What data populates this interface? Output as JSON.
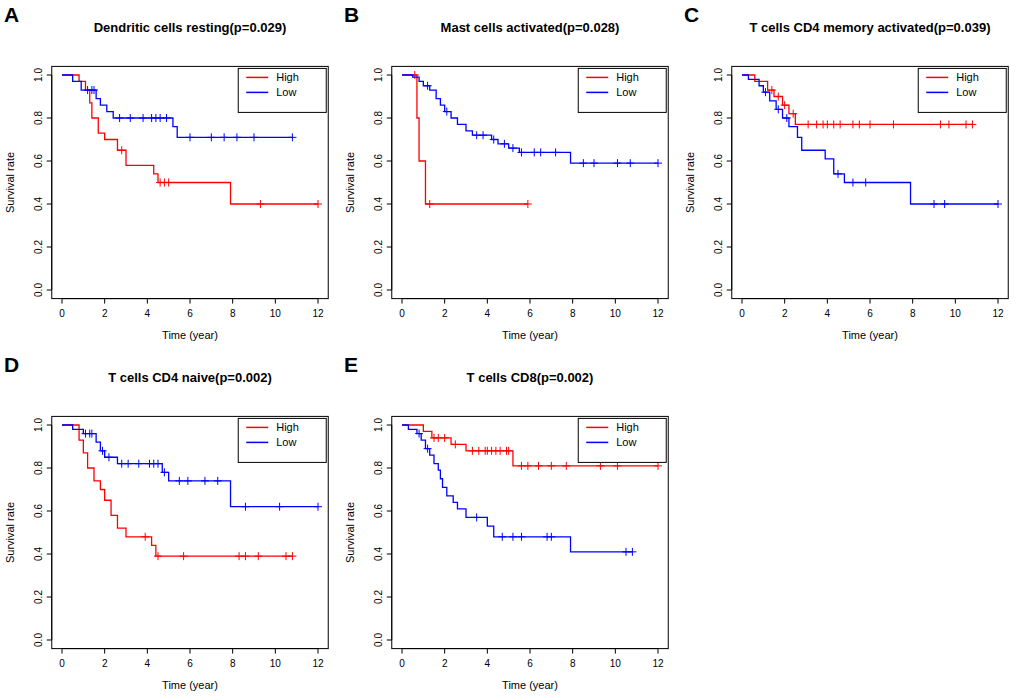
{
  "chart_data": [
    {
      "type": "step",
      "panel_label": "A",
      "title": "Dendritic cells resting(p=0.029)",
      "x_label": "Time (year)",
      "y_label": "Survival rate",
      "xlim": [
        0,
        12
      ],
      "ylim": [
        0,
        1
      ],
      "xticks": [
        0,
        2,
        4,
        6,
        8,
        10,
        12
      ],
      "yticks": [
        {
          "value": 0,
          "label": "0.0"
        },
        0.2,
        0.4,
        0.6,
        0.8,
        {
          "value": 1,
          "label": "1.0"
        }
      ],
      "legend": "topright",
      "marker": "plus",
      "series": [
        {
          "name": "High",
          "color": "#ff0000",
          "x": [
            0,
            0.8,
            1.1,
            1.3,
            1.4,
            1.7,
            2.0,
            2.6,
            3.0,
            4.3,
            4.5,
            7.9,
            12
          ],
          "values": [
            1,
            0.97,
            0.93,
            0.87,
            0.8,
            0.73,
            0.7,
            0.65,
            0.58,
            0.54,
            0.5,
            0.4,
            0.4
          ],
          "censor_x": [
            2.8,
            4.6,
            4.8,
            5.0,
            9.3,
            12
          ],
          "censor_values": [
            0.65,
            0.5,
            0.5,
            0.5,
            0.4,
            0.4
          ]
        },
        {
          "name": "Low",
          "color": "#0000ff",
          "x": [
            0,
            0.5,
            0.9,
            1.6,
            1.8,
            2.1,
            2.4,
            5.2,
            5.4,
            10.8
          ],
          "values": [
            1,
            0.97,
            0.93,
            0.89,
            0.86,
            0.83,
            0.8,
            0.76,
            0.71,
            0.71
          ],
          "censor_x": [
            1.2,
            1.4,
            1.5,
            2.7,
            3.2,
            3.8,
            4.2,
            4.4,
            4.6,
            4.9,
            6.0,
            7.0,
            7.6,
            8.2,
            9.0,
            10.8
          ],
          "censor_values": [
            0.93,
            0.93,
            0.93,
            0.8,
            0.8,
            0.8,
            0.8,
            0.8,
            0.8,
            0.8,
            0.71,
            0.71,
            0.71,
            0.71,
            0.71,
            0.71
          ]
        }
      ]
    },
    {
      "type": "step",
      "panel_label": "B",
      "title": "Mast cells activated(p=0.028)",
      "x_label": "Time (year)",
      "y_label": "Survival rate",
      "xlim": [
        0,
        12
      ],
      "ylim": [
        0,
        1
      ],
      "xticks": [
        0,
        2,
        4,
        6,
        8,
        10,
        12
      ],
      "yticks": [
        {
          "value": 0,
          "label": "0.0"
        },
        0.2,
        0.4,
        0.6,
        0.8,
        {
          "value": 1,
          "label": "1.0"
        }
      ],
      "legend": "topright",
      "marker": "plus",
      "series": [
        {
          "name": "High",
          "color": "#ff0000",
          "x": [
            0,
            0.7,
            0.8,
            1.1,
            5.9
          ],
          "values": [
            1,
            0.8,
            0.6,
            0.4,
            0.4
          ],
          "censor_x": [
            0.6,
            1.3,
            5.9
          ],
          "censor_values": [
            1,
            0.4,
            0.4
          ]
        },
        {
          "name": "Low",
          "color": "#0000ff",
          "x": [
            0,
            0.5,
            0.8,
            1.0,
            1.3,
            1.6,
            1.8,
            2.0,
            2.3,
            2.6,
            3.0,
            3.3,
            4.2,
            4.5,
            5.0,
            5.5,
            7.9,
            12
          ],
          "values": [
            1,
            0.99,
            0.97,
            0.95,
            0.93,
            0.89,
            0.86,
            0.83,
            0.8,
            0.77,
            0.74,
            0.72,
            0.7,
            0.68,
            0.66,
            0.64,
            0.59,
            0.59
          ],
          "censor_x": [
            1.2,
            2.1,
            3.5,
            3.8,
            4.3,
            4.8,
            5.2,
            5.6,
            6.2,
            6.5,
            7.2,
            8.5,
            9.0,
            10.1,
            10.7,
            12
          ],
          "censor_values": [
            0.95,
            0.83,
            0.72,
            0.72,
            0.7,
            0.68,
            0.66,
            0.64,
            0.64,
            0.64,
            0.64,
            0.59,
            0.59,
            0.59,
            0.59,
            0.59
          ]
        }
      ]
    },
    {
      "type": "step",
      "panel_label": "C",
      "title": "T cells CD4 memory activated(p=0.039)",
      "x_label": "Time (year)",
      "y_label": "Survival rate",
      "xlim": [
        0,
        12
      ],
      "ylim": [
        0,
        1
      ],
      "xticks": [
        0,
        2,
        4,
        6,
        8,
        10,
        12
      ],
      "yticks": [
        {
          "value": 0,
          "label": "0.0"
        },
        0.2,
        0.4,
        0.6,
        0.8,
        {
          "value": 1,
          "label": "1.0"
        }
      ],
      "legend": "topright",
      "marker": "plus",
      "series": [
        {
          "name": "High",
          "color": "#ff0000",
          "x": [
            0,
            0.6,
            1.2,
            1.5,
            1.9,
            2.2,
            2.5,
            10.8
          ],
          "values": [
            1,
            0.97,
            0.93,
            0.9,
            0.86,
            0.82,
            0.77,
            0.77
          ],
          "censor_x": [
            1.4,
            1.7,
            2.0,
            2.4,
            3.1,
            3.5,
            3.8,
            4.0,
            4.3,
            4.6,
            5.2,
            5.5,
            6.0,
            7.1,
            9.3,
            9.7,
            10.5,
            10.8
          ],
          "censor_values": [
            0.93,
            0.9,
            0.86,
            0.82,
            0.77,
            0.77,
            0.77,
            0.77,
            0.77,
            0.77,
            0.77,
            0.77,
            0.77,
            0.77,
            0.77,
            0.77,
            0.77,
            0.77
          ]
        },
        {
          "name": "Low",
          "color": "#0000ff",
          "x": [
            0,
            0.3,
            0.8,
            1.0,
            1.3,
            1.6,
            1.9,
            2.2,
            2.6,
            2.8,
            3.9,
            4.3,
            4.8,
            7.9,
            12
          ],
          "values": [
            1,
            0.98,
            0.95,
            0.92,
            0.88,
            0.84,
            0.8,
            0.76,
            0.71,
            0.65,
            0.61,
            0.54,
            0.5,
            0.4,
            0.4
          ],
          "censor_x": [
            1.1,
            1.7,
            2.1,
            4.5,
            5.2,
            5.8,
            9.0,
            9.5,
            12
          ],
          "censor_values": [
            0.92,
            0.84,
            0.8,
            0.54,
            0.5,
            0.5,
            0.4,
            0.4,
            0.4
          ]
        }
      ]
    },
    {
      "type": "step",
      "panel_label": "D",
      "title": "T cells CD4 naive(p=0.002)",
      "x_label": "Time (year)",
      "y_label": "Survival rate",
      "xlim": [
        0,
        12
      ],
      "ylim": [
        0,
        1
      ],
      "xticks": [
        0,
        2,
        4,
        6,
        8,
        10,
        12
      ],
      "yticks": [
        {
          "value": 0,
          "label": "0.0"
        },
        0.2,
        0.4,
        0.6,
        0.8,
        {
          "value": 1,
          "label": "1.0"
        }
      ],
      "legend": "topright",
      "marker": "plus",
      "series": [
        {
          "name": "High",
          "color": "#ff0000",
          "x": [
            0,
            0.8,
            1.0,
            1.2,
            1.5,
            1.8,
            2.0,
            2.3,
            2.6,
            3.0,
            4.2,
            4.4,
            10.8
          ],
          "values": [
            1,
            0.93,
            0.87,
            0.8,
            0.74,
            0.7,
            0.65,
            0.58,
            0.52,
            0.48,
            0.44,
            0.39,
            0.39
          ],
          "censor_x": [
            3.9,
            4.5,
            5.7,
            8.3,
            8.6,
            9.2,
            10.5,
            10.8
          ],
          "censor_values": [
            0.48,
            0.39,
            0.39,
            0.39,
            0.39,
            0.39,
            0.39,
            0.39
          ]
        },
        {
          "name": "Low",
          "color": "#0000ff",
          "x": [
            0,
            0.5,
            1.0,
            1.6,
            1.8,
            2.0,
            2.6,
            4.7,
            5.0,
            7.9,
            12
          ],
          "values": [
            1,
            0.98,
            0.96,
            0.92,
            0.88,
            0.85,
            0.82,
            0.78,
            0.74,
            0.62,
            0.62
          ],
          "censor_x": [
            1.1,
            1.3,
            1.4,
            1.9,
            2.2,
            2.8,
            3.1,
            3.6,
            4.1,
            4.3,
            4.5,
            4.8,
            5.5,
            5.9,
            6.7,
            7.3,
            8.6,
            10.2,
            12
          ],
          "censor_values": [
            0.96,
            0.96,
            0.96,
            0.88,
            0.85,
            0.82,
            0.82,
            0.82,
            0.82,
            0.82,
            0.82,
            0.78,
            0.74,
            0.74,
            0.74,
            0.74,
            0.62,
            0.62,
            0.62
          ]
        }
      ]
    },
    {
      "type": "step",
      "panel_label": "E",
      "title": "T cells CD8(p=0.002)",
      "x_label": "Time (year)",
      "y_label": "Survival rate",
      "xlim": [
        0,
        12
      ],
      "ylim": [
        0,
        1
      ],
      "xticks": [
        0,
        2,
        4,
        6,
        8,
        10,
        12
      ],
      "yticks": [
        {
          "value": 0,
          "label": "0.0"
        },
        0.2,
        0.4,
        0.6,
        0.8,
        {
          "value": 1,
          "label": "1.0"
        }
      ],
      "legend": "topright",
      "marker": "plus",
      "series": [
        {
          "name": "High",
          "color": "#ff0000",
          "x": [
            0,
            1.0,
            1.4,
            2.3,
            3.0,
            5.2,
            12
          ],
          "values": [
            1,
            0.97,
            0.94,
            0.91,
            0.88,
            0.81,
            0.81
          ],
          "censor_x": [
            1.5,
            1.7,
            2.0,
            2.5,
            3.3,
            3.6,
            3.9,
            4.0,
            4.2,
            4.4,
            4.6,
            4.9,
            5.0,
            5.6,
            5.9,
            6.4,
            7.0,
            7.7,
            9.3,
            10.1,
            12
          ],
          "censor_values": [
            0.94,
            0.94,
            0.94,
            0.91,
            0.88,
            0.88,
            0.88,
            0.88,
            0.88,
            0.88,
            0.88,
            0.88,
            0.88,
            0.81,
            0.81,
            0.81,
            0.81,
            0.81,
            0.81,
            0.81,
            0.81
          ]
        },
        {
          "name": "Low",
          "color": "#0000ff",
          "x": [
            0,
            0.3,
            0.7,
            0.9,
            1.1,
            1.3,
            1.5,
            1.7,
            1.8,
            1.9,
            2.1,
            2.4,
            2.6,
            3.0,
            4.0,
            4.3,
            7.9,
            10.8
          ],
          "values": [
            1,
            0.98,
            0.96,
            0.93,
            0.89,
            0.86,
            0.82,
            0.79,
            0.75,
            0.71,
            0.67,
            0.64,
            0.61,
            0.57,
            0.53,
            0.48,
            0.41,
            0.41
          ],
          "censor_x": [
            0.8,
            1.2,
            3.5,
            4.7,
            5.2,
            5.6,
            6.8,
            7.0,
            10.5,
            10.8
          ],
          "censor_values": [
            0.96,
            0.89,
            0.57,
            0.48,
            0.48,
            0.48,
            0.48,
            0.48,
            0.41,
            0.41
          ]
        }
      ]
    }
  ]
}
